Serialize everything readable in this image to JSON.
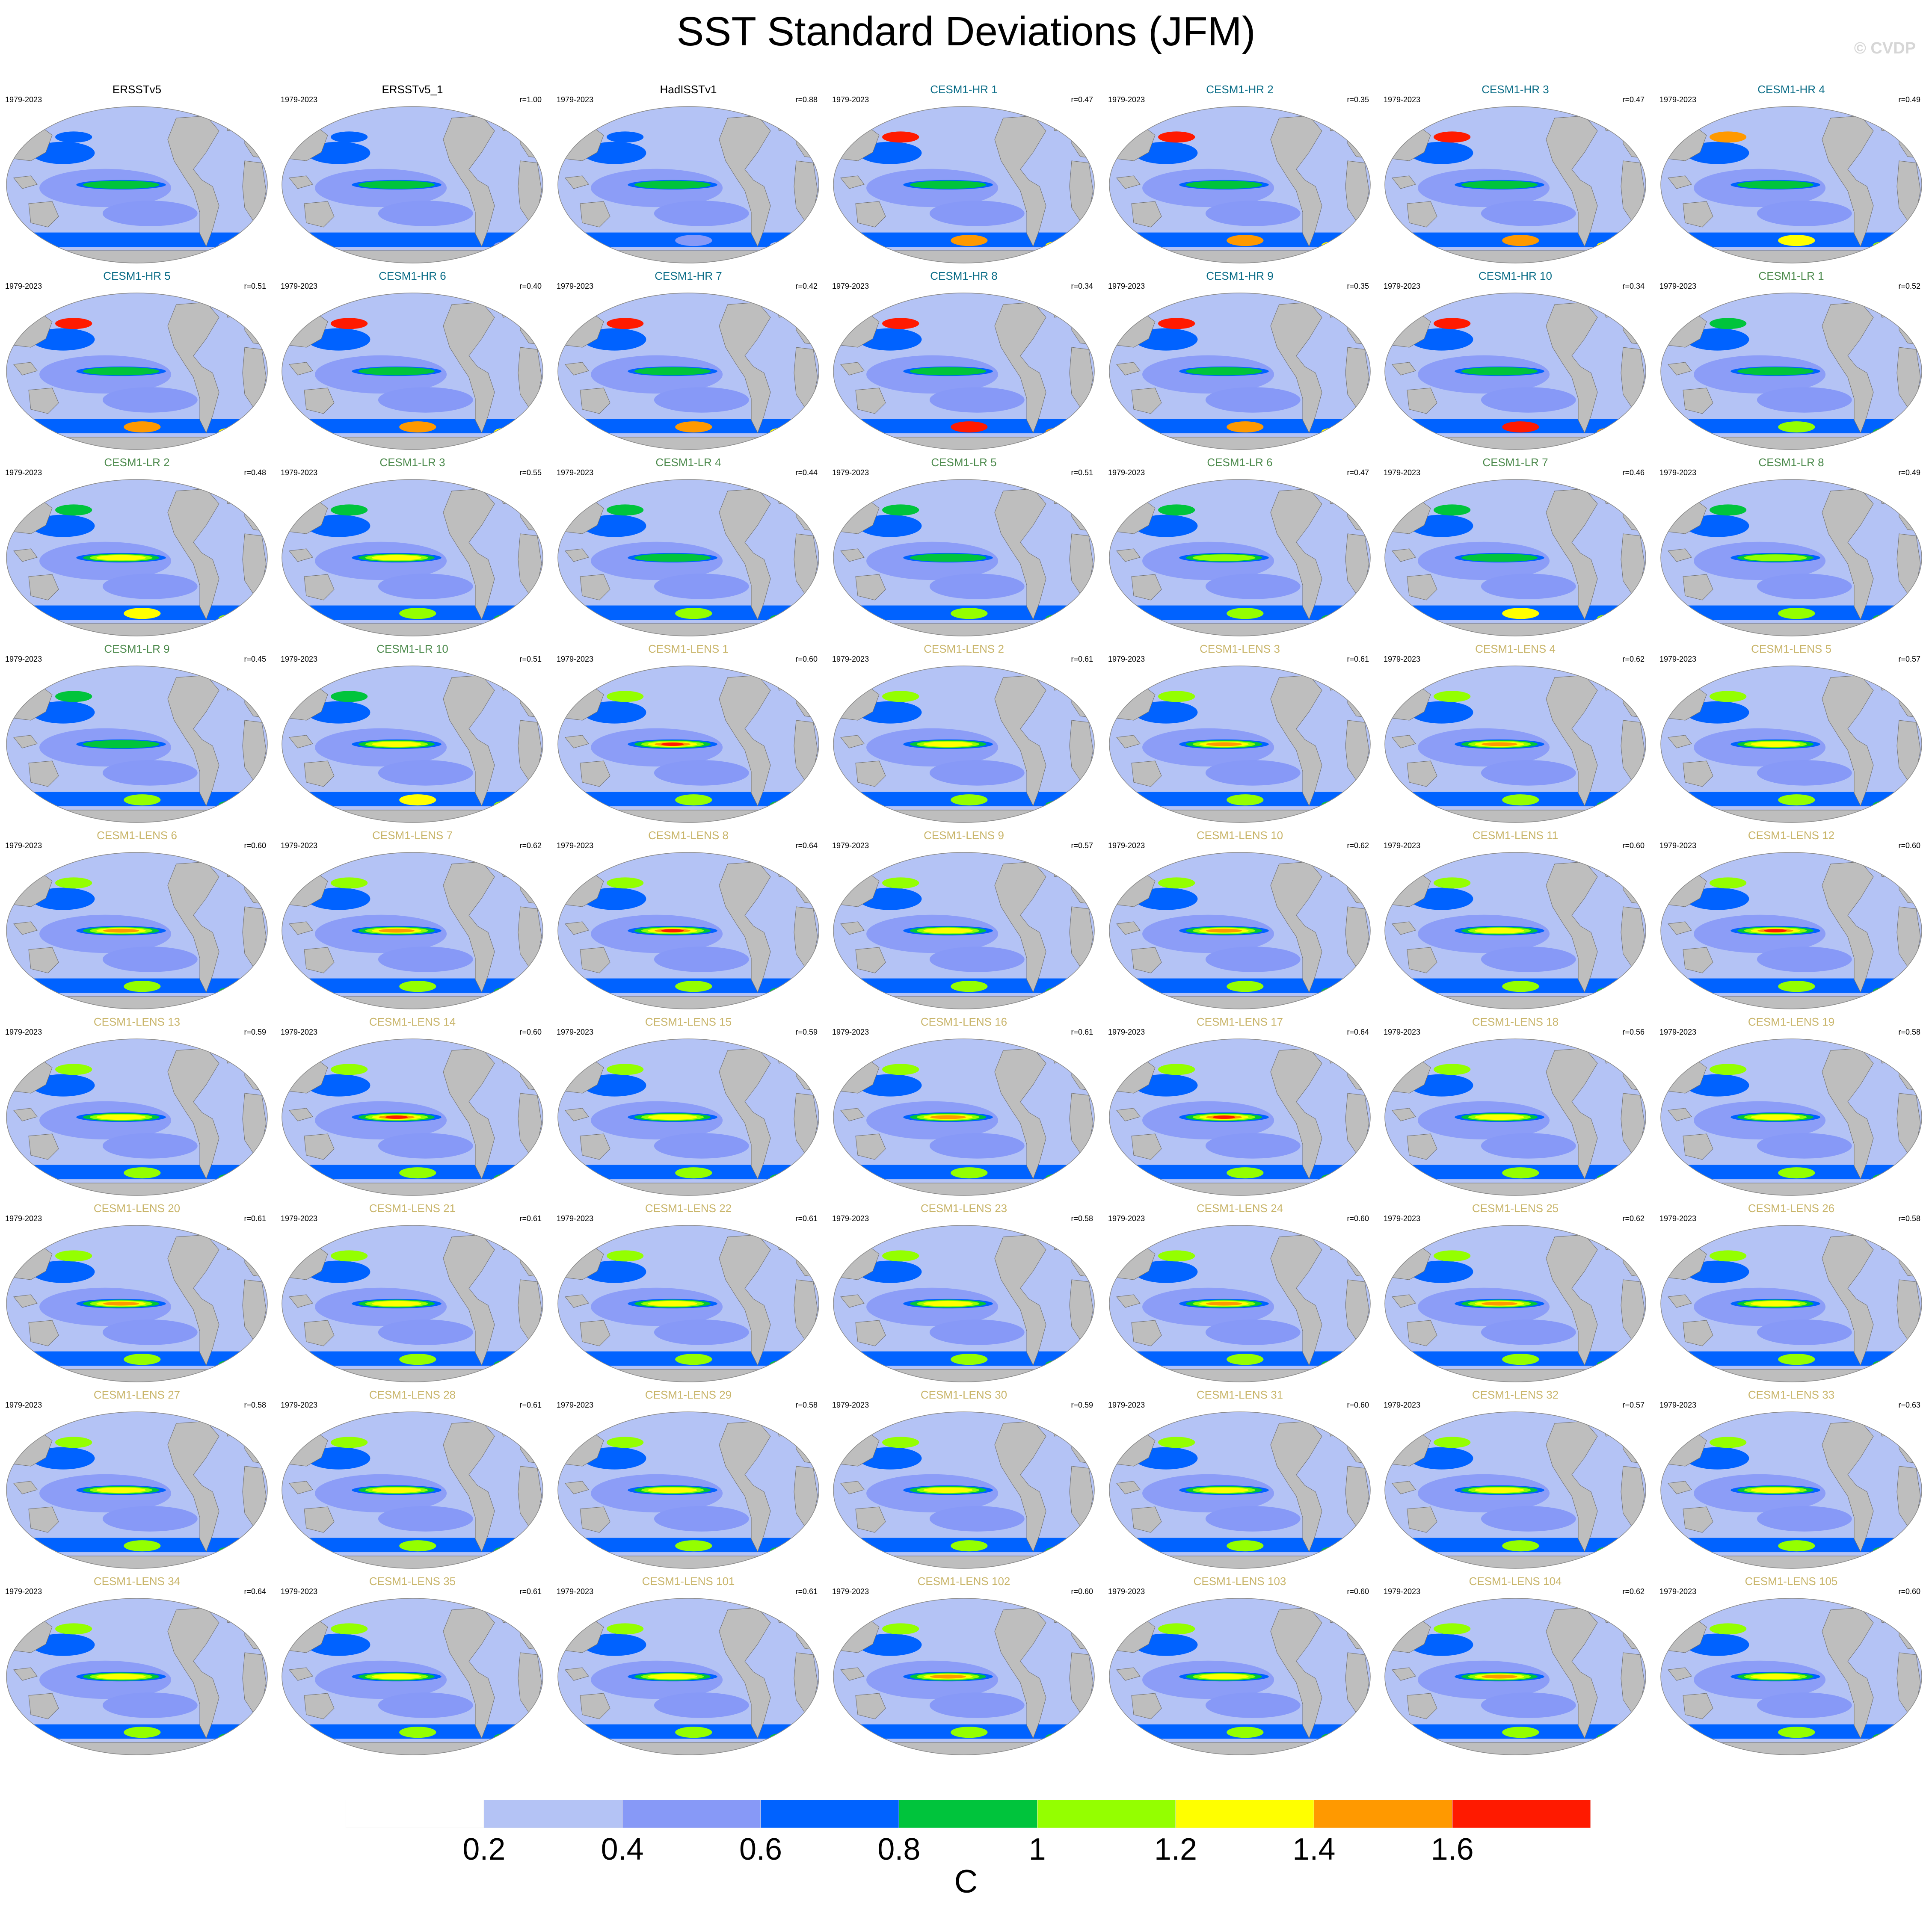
{
  "title": "SST Standard Deviations (JFM)",
  "watermark": "© CVDP",
  "chart_data": {
    "type": "heatmap",
    "title": "SST Standard Deviations (JFM)",
    "colorbar": {
      "units": "C",
      "ticks": [
        "0.2",
        "0.4",
        "0.6",
        "0.8",
        "1",
        "1.2",
        "1.4",
        "1.6"
      ],
      "boundaries": [
        0.2,
        0.4,
        0.6,
        0.8,
        1.0,
        1.2,
        1.4,
        1.6
      ],
      "colors": [
        "#ffffff",
        "#b4c3f5",
        "#8799f7",
        "#0062ff",
        "#00c43c",
        "#94ff00",
        "#ffff00",
        "#ff9900",
        "#ff1a00"
      ]
    },
    "land_color": "#bebebe",
    "panels": [
      {
        "name": "ERSSTv5",
        "period": "1979-2023",
        "r": "",
        "group": "obs",
        "eq": 0.9,
        "north": 0.7,
        "south": 0.6
      },
      {
        "name": "ERSSTv5_1",
        "period": "1979-2023",
        "r": "r=1.00",
        "group": "obs",
        "eq": 0.9,
        "north": 0.7,
        "south": 0.6
      },
      {
        "name": "HadISSTv1",
        "period": "1979-2023",
        "r": "r=0.88",
        "group": "obs",
        "eq": 0.9,
        "north": 0.6,
        "south": 0.4
      },
      {
        "name": "CESM1-HR 1",
        "period": "1979-2023",
        "r": "r=0.47",
        "group": "hr",
        "eq": 0.8,
        "north": 1.6,
        "south": 1.4
      },
      {
        "name": "CESM1-HR 2",
        "period": "1979-2023",
        "r": "r=0.35",
        "group": "hr",
        "eq": 0.8,
        "north": 1.6,
        "south": 1.5
      },
      {
        "name": "CESM1-HR 3",
        "period": "1979-2023",
        "r": "r=0.47",
        "group": "hr",
        "eq": 0.8,
        "north": 1.6,
        "south": 1.5
      },
      {
        "name": "CESM1-HR 4",
        "period": "1979-2023",
        "r": "r=0.49",
        "group": "hr",
        "eq": 0.8,
        "north": 1.5,
        "south": 1.3
      },
      {
        "name": "CESM1-HR 5",
        "period": "1979-2023",
        "r": "r=0.51",
        "group": "hr",
        "eq": 0.8,
        "north": 1.6,
        "south": 1.5
      },
      {
        "name": "CESM1-HR 6",
        "period": "1979-2023",
        "r": "r=0.40",
        "group": "hr",
        "eq": 0.8,
        "north": 1.6,
        "south": 1.4
      },
      {
        "name": "CESM1-HR 7",
        "period": "1979-2023",
        "r": "r=0.42",
        "group": "hr",
        "eq": 0.8,
        "north": 1.6,
        "south": 1.5
      },
      {
        "name": "CESM1-HR 8",
        "period": "1979-2023",
        "r": "r=0.34",
        "group": "hr",
        "eq": 0.8,
        "north": 1.6,
        "south": 1.6
      },
      {
        "name": "CESM1-HR 9",
        "period": "1979-2023",
        "r": "r=0.35",
        "group": "hr",
        "eq": 0.8,
        "north": 1.6,
        "south": 1.5
      },
      {
        "name": "CESM1-HR 10",
        "period": "1979-2023",
        "r": "r=0.34",
        "group": "hr",
        "eq": 0.8,
        "north": 1.6,
        "south": 1.6
      },
      {
        "name": "CESM1-LR 1",
        "period": "1979-2023",
        "r": "r=0.52",
        "group": "lr",
        "eq": 0.9,
        "north": 0.9,
        "south": 1.1
      },
      {
        "name": "CESM1-LR 2",
        "period": "1979-2023",
        "r": "r=0.48",
        "group": "lr",
        "eq": 1.2,
        "north": 0.9,
        "south": 1.3
      },
      {
        "name": "CESM1-LR 3",
        "period": "1979-2023",
        "r": "r=0.55",
        "group": "lr",
        "eq": 1.2,
        "north": 0.9,
        "south": 1.1
      },
      {
        "name": "CESM1-LR 4",
        "period": "1979-2023",
        "r": "r=0.44",
        "group": "lr",
        "eq": 0.9,
        "north": 0.9,
        "south": 1.1
      },
      {
        "name": "CESM1-LR 5",
        "period": "1979-2023",
        "r": "r=0.51",
        "group": "lr",
        "eq": 0.9,
        "north": 0.9,
        "south": 1.1
      },
      {
        "name": "CESM1-LR 6",
        "period": "1979-2023",
        "r": "r=0.47",
        "group": "lr",
        "eq": 1.1,
        "north": 0.9,
        "south": 1.1
      },
      {
        "name": "CESM1-LR 7",
        "period": "1979-2023",
        "r": "r=0.46",
        "group": "lr",
        "eq": 0.9,
        "north": 0.9,
        "south": 1.2
      },
      {
        "name": "CESM1-LR 8",
        "period": "1979-2023",
        "r": "r=0.49",
        "group": "lr",
        "eq": 1.1,
        "north": 0.9,
        "south": 1.1
      },
      {
        "name": "CESM1-LR 9",
        "period": "1979-2023",
        "r": "r=0.45",
        "group": "lr",
        "eq": 0.9,
        "north": 0.9,
        "south": 1.1
      },
      {
        "name": "CESM1-LR 10",
        "period": "1979-2023",
        "r": "r=0.51",
        "group": "lr",
        "eq": 1.2,
        "north": 0.9,
        "south": 1.2
      },
      {
        "name": "CESM1-LENS 1",
        "period": "1979-2023",
        "r": "r=0.60",
        "group": "lens",
        "eq": 1.6,
        "north": 1.1,
        "south": 1.1
      },
      {
        "name": "CESM1-LENS 2",
        "period": "1979-2023",
        "r": "r=0.61",
        "group": "lens",
        "eq": 1.2,
        "north": 1.1,
        "south": 1.0
      },
      {
        "name": "CESM1-LENS 3",
        "period": "1979-2023",
        "r": "r=0.61",
        "group": "lens",
        "eq": 1.4,
        "north": 1.1,
        "south": 1.0
      },
      {
        "name": "CESM1-LENS 4",
        "period": "1979-2023",
        "r": "r=0.62",
        "group": "lens",
        "eq": 1.5,
        "north": 1.1,
        "south": 1.1
      },
      {
        "name": "CESM1-LENS 5",
        "period": "1979-2023",
        "r": "r=0.57",
        "group": "lens",
        "eq": 1.2,
        "north": 1.1,
        "south": 1.0
      },
      {
        "name": "CESM1-LENS 6",
        "period": "1979-2023",
        "r": "r=0.60",
        "group": "lens",
        "eq": 1.5,
        "north": 1.1,
        "south": 1.1
      },
      {
        "name": "CESM1-LENS 7",
        "period": "1979-2023",
        "r": "r=0.62",
        "group": "lens",
        "eq": 1.4,
        "north": 1.1,
        "south": 1.0
      },
      {
        "name": "CESM1-LENS 8",
        "period": "1979-2023",
        "r": "r=0.64",
        "group": "lens",
        "eq": 1.6,
        "north": 1.1,
        "south": 1.0
      },
      {
        "name": "CESM1-LENS 9",
        "period": "1979-2023",
        "r": "r=0.57",
        "group": "lens",
        "eq": 1.2,
        "north": 1.1,
        "south": 1.0
      },
      {
        "name": "CESM1-LENS 10",
        "period": "1979-2023",
        "r": "r=0.62",
        "group": "lens",
        "eq": 1.4,
        "north": 1.1,
        "south": 1.0
      },
      {
        "name": "CESM1-LENS 11",
        "period": "1979-2023",
        "r": "r=0.60",
        "group": "lens",
        "eq": 1.3,
        "north": 1.1,
        "south": 1.1
      },
      {
        "name": "CESM1-LENS 12",
        "period": "1979-2023",
        "r": "r=0.60",
        "group": "lens",
        "eq": 1.6,
        "north": 1.1,
        "south": 1.0
      },
      {
        "name": "CESM1-LENS 13",
        "period": "1979-2023",
        "r": "r=0.59",
        "group": "lens",
        "eq": 1.2,
        "north": 1.1,
        "south": 1.1
      },
      {
        "name": "CESM1-LENS 14",
        "period": "1979-2023",
        "r": "r=0.60",
        "group": "lens",
        "eq": 1.6,
        "north": 1.1,
        "south": 1.1
      },
      {
        "name": "CESM1-LENS 15",
        "period": "1979-2023",
        "r": "r=0.59",
        "group": "lens",
        "eq": 1.3,
        "north": 1.1,
        "south": 1.1
      },
      {
        "name": "CESM1-LENS 16",
        "period": "1979-2023",
        "r": "r=0.61",
        "group": "lens",
        "eq": 1.5,
        "north": 1.1,
        "south": 1.1
      },
      {
        "name": "CESM1-LENS 17",
        "period": "1979-2023",
        "r": "r=0.64",
        "group": "lens",
        "eq": 1.6,
        "north": 1.1,
        "south": 1.1
      },
      {
        "name": "CESM1-LENS 18",
        "period": "1979-2023",
        "r": "r=0.56",
        "group": "lens",
        "eq": 1.2,
        "north": 1.1,
        "south": 1.0
      },
      {
        "name": "CESM1-LENS 19",
        "period": "1979-2023",
        "r": "r=0.58",
        "group": "lens",
        "eq": 1.3,
        "north": 1.1,
        "south": 1.0
      },
      {
        "name": "CESM1-LENS 20",
        "period": "1979-2023",
        "r": "r=0.61",
        "group": "lens",
        "eq": 1.5,
        "north": 1.1,
        "south": 1.1
      },
      {
        "name": "CESM1-LENS 21",
        "period": "1979-2023",
        "r": "r=0.61",
        "group": "lens",
        "eq": 1.3,
        "north": 1.1,
        "south": 1.1
      },
      {
        "name": "CESM1-LENS 22",
        "period": "1979-2023",
        "r": "r=0.61",
        "group": "lens",
        "eq": 1.3,
        "north": 1.1,
        "south": 1.0
      },
      {
        "name": "CESM1-LENS 23",
        "period": "1979-2023",
        "r": "r=0.58",
        "group": "lens",
        "eq": 1.3,
        "north": 1.1,
        "south": 1.0
      },
      {
        "name": "CESM1-LENS 24",
        "period": "1979-2023",
        "r": "r=0.60",
        "group": "lens",
        "eq": 1.5,
        "north": 1.1,
        "south": 1.1
      },
      {
        "name": "CESM1-LENS 25",
        "period": "1979-2023",
        "r": "r=0.62",
        "group": "lens",
        "eq": 1.5,
        "north": 1.1,
        "south": 1.0
      },
      {
        "name": "CESM1-LENS 26",
        "period": "1979-2023",
        "r": "r=0.58",
        "group": "lens",
        "eq": 1.2,
        "north": 1.1,
        "south": 1.0
      },
      {
        "name": "CESM1-LENS 27",
        "period": "1979-2023",
        "r": "r=0.58",
        "group": "lens",
        "eq": 1.2,
        "north": 1.1,
        "south": 1.0
      },
      {
        "name": "CESM1-LENS 28",
        "period": "1979-2023",
        "r": "r=0.61",
        "group": "lens",
        "eq": 1.3,
        "north": 1.1,
        "south": 1.1
      },
      {
        "name": "CESM1-LENS 29",
        "period": "1979-2023",
        "r": "r=0.58",
        "group": "lens",
        "eq": 1.2,
        "north": 1.1,
        "south": 1.0
      },
      {
        "name": "CESM1-LENS 30",
        "period": "1979-2023",
        "r": "r=0.59",
        "group": "lens",
        "eq": 1.3,
        "north": 1.1,
        "south": 1.1
      },
      {
        "name": "CESM1-LENS 31",
        "period": "1979-2023",
        "r": "r=0.60",
        "group": "lens",
        "eq": 1.3,
        "north": 1.1,
        "south": 1.0
      },
      {
        "name": "CESM1-LENS 32",
        "period": "1979-2023",
        "r": "r=0.57",
        "group": "lens",
        "eq": 1.2,
        "north": 1.1,
        "south": 1.0
      },
      {
        "name": "CESM1-LENS 33",
        "period": "1979-2023",
        "r": "r=0.63",
        "group": "lens",
        "eq": 1.3,
        "north": 1.1,
        "south": 1.1
      },
      {
        "name": "CESM1-LENS 34",
        "period": "1979-2023",
        "r": "r=0.64",
        "group": "lens",
        "eq": 1.3,
        "north": 1.1,
        "south": 1.1
      },
      {
        "name": "CESM1-LENS 35",
        "period": "1979-2023",
        "r": "r=0.61",
        "group": "lens",
        "eq": 1.3,
        "north": 1.1,
        "south": 1.1
      },
      {
        "name": "CESM1-LENS 101",
        "period": "1979-2023",
        "r": "r=0.61",
        "group": "lens",
        "eq": 1.3,
        "north": 1.1,
        "south": 1.1
      },
      {
        "name": "CESM1-LENS 102",
        "period": "1979-2023",
        "r": "r=0.60",
        "group": "lens",
        "eq": 1.5,
        "north": 1.1,
        "south": 1.1
      },
      {
        "name": "CESM1-LENS 103",
        "period": "1979-2023",
        "r": "r=0.60",
        "group": "lens",
        "eq": 1.3,
        "north": 1.1,
        "south": 1.0
      },
      {
        "name": "CESM1-LENS 104",
        "period": "1979-2023",
        "r": "r=0.62",
        "group": "lens",
        "eq": 1.5,
        "north": 1.1,
        "south": 1.1
      },
      {
        "name": "CESM1-LENS 105",
        "period": "1979-2023",
        "r": "r=0.60",
        "group": "lens",
        "eq": 1.3,
        "north": 1.1,
        "south": 1.1
      }
    ],
    "title_colors": {
      "obs": "#000000",
      "hr": "#0b6d87",
      "lr": "#4c8a4c",
      "lens": "#c9b56a"
    }
  }
}
